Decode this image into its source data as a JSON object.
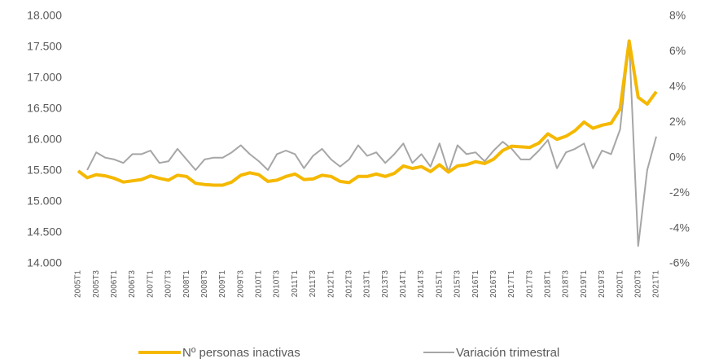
{
  "chart_data": {
    "type": "line",
    "categories": [
      "2005T1",
      null,
      "2005T3",
      null,
      "2006T1",
      null,
      "2006T3",
      null,
      "2007T1",
      null,
      "2007T3",
      null,
      "2008T1",
      null,
      "2008T3",
      null,
      "2009T1",
      null,
      "2009T3",
      null,
      "2010T1",
      null,
      "2010T3",
      null,
      "2011T1",
      null,
      "2011T3",
      null,
      "2012T1",
      null,
      "2012T3",
      null,
      "2013T1",
      null,
      "2013T3",
      null,
      "2014T1",
      null,
      "2014T3",
      null,
      "2015T1",
      null,
      "2015T3",
      null,
      "2016T1",
      null,
      "2016T3",
      null,
      "2017T1",
      null,
      "2017T3",
      null,
      "2018T1",
      null,
      "2018T3",
      null,
      "2019T1",
      null,
      "2019T3",
      null,
      "2020T1",
      null,
      "2020T3",
      null,
      "2021T1"
    ],
    "series": [
      {
        "name": "Nº personas inactivas",
        "color": "#f5b800",
        "values": [
          15500,
          15390,
          15440,
          15420,
          15380,
          15320,
          15340,
          15360,
          15420,
          15380,
          15350,
          15430,
          15410,
          15300,
          15280,
          15270,
          15270,
          15320,
          15430,
          15470,
          15440,
          15330,
          15350,
          15410,
          15450,
          15360,
          15370,
          15430,
          15410,
          15330,
          15310,
          15410,
          15410,
          15450,
          15410,
          15460,
          15580,
          15540,
          15570,
          15490,
          15600,
          15480,
          15580,
          15600,
          15650,
          15620,
          15690,
          15830,
          15900,
          15890,
          15880,
          15950,
          16100,
          16010,
          16060,
          16150,
          16290,
          16190,
          16240,
          16270,
          16500,
          17600,
          16690,
          16580,
          16780
        ]
      },
      {
        "name": "Variación trimestral",
        "color": "#a6a6a6",
        "axis": "y2",
        "values": [
          null,
          -0.7,
          0.3,
          0,
          -0.1,
          -0.3,
          0.2,
          0.2,
          0.4,
          -0.3,
          -0.2,
          0.5,
          -0.1,
          -0.7,
          -0.1,
          0,
          0,
          0.3,
          0.7,
          0.2,
          -0.2,
          -0.7,
          0.2,
          0.4,
          0.2,
          -0.6,
          0.1,
          0.5,
          -0.1,
          -0.5,
          -0.1,
          0.7,
          0.1,
          0.3,
          -0.3,
          0.2,
          0.8,
          -0.3,
          0.2,
          -0.5,
          0.8,
          -0.8,
          0.7,
          0.2,
          0.3,
          -0.2,
          0.4,
          0.9,
          0.5,
          -0.1,
          -0.1,
          0.4,
          1.0,
          -0.6,
          0.3,
          0.5,
          0.8,
          -0.6,
          0.4,
          0.2,
          1.6,
          6.6,
          -5.0,
          -0.7,
          1.2
        ]
      }
    ],
    "ylim": [
      14000,
      18000
    ],
    "yticks": [
      {
        "value": 14000,
        "label": "14.000"
      },
      {
        "value": 14500,
        "label": "14.500"
      },
      {
        "value": 15000,
        "label": "15.000"
      },
      {
        "value": 15500,
        "label": "15.500"
      },
      {
        "value": 16000,
        "label": "16.000"
      },
      {
        "value": 16500,
        "label": "16.500"
      },
      {
        "value": 17000,
        "label": "17.000"
      },
      {
        "value": 17500,
        "label": "17.500"
      },
      {
        "value": 18000,
        "label": "18.000"
      }
    ],
    "y2lim": [
      -6,
      8
    ],
    "y2ticks": [
      {
        "value": -6,
        "label": "-6%"
      },
      {
        "value": -4,
        "label": "-4%"
      },
      {
        "value": -2,
        "label": "-2%"
      },
      {
        "value": 0,
        "label": "0%"
      },
      {
        "value": 2,
        "label": "2%"
      },
      {
        "value": 4,
        "label": "4%"
      },
      {
        "value": 6,
        "label": "6%"
      },
      {
        "value": 8,
        "label": "8%"
      }
    ],
    "legend": "bottom"
  }
}
